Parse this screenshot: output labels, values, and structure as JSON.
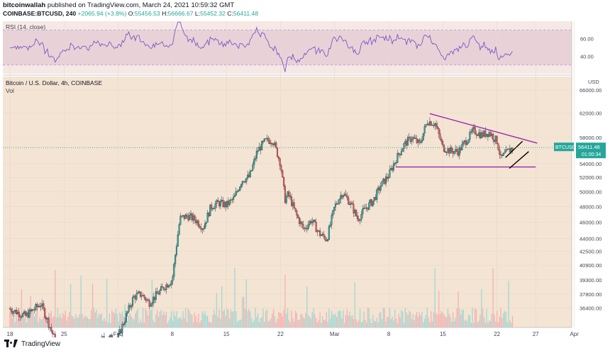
{
  "header": {
    "author": "bitcoinwallah",
    "published": "published on TradingView.com, March 24, 2021 10:59:32 GMT",
    "symbol": "COINBASE:BTCUSD, 240",
    "change": "+2065.94 (+3.8%)",
    "open_label": "O:",
    "open": "55456.53",
    "high_label": "H:",
    "high": "56666.67",
    "low_label": "L:",
    "low": "55452.32",
    "close_label": "C:",
    "close": "56411.48"
  },
  "footer": {
    "brand": "TradingView"
  },
  "colors": {
    "up": "#26a69a",
    "down": "#ef5350",
    "rsi_line": "#7e57c2",
    "rsi_band": "#e8d2d8",
    "trendline": "#9c27b0",
    "price_bg": "#f4e4d3",
    "volume_up": "#a6d8d3",
    "volume_down": "#f4b4b2"
  },
  "chart_data": {
    "type": "candlestick",
    "rsi_panel": {
      "label": "RSI (14, close)",
      "ticks": [
        "60.00",
        "40.00"
      ],
      "tick_values": [
        60,
        40
      ],
      "ylim": [
        20,
        80
      ],
      "band": [
        30,
        70
      ]
    },
    "price_panel": {
      "title": "Bitcoin / U.S. Dollar, 4h, COINBASE",
      "sublabel": "Vol",
      "currency": "USD",
      "ticks": [
        "66000.00",
        "62000.00",
        "58000.00",
        "54000.00",
        "52000.00",
        "50000.00",
        "48000.00",
        "46000.00",
        "44000.00",
        "42500.00",
        "40900.00",
        "39300.00",
        "37800.00",
        "36400.00"
      ],
      "tick_values": [
        66000,
        62000,
        58000,
        54000,
        52000,
        50000,
        48000,
        46000,
        44000,
        42500,
        40900,
        39300,
        37800,
        36400
      ],
      "scale": "log",
      "last_price_label": "BTCUSD",
      "last_price": "56411.48",
      "countdown": "01:00:34"
    },
    "x_axis": {
      "labels": [
        "18",
        "25",
        "Feb",
        "8",
        "15",
        "22",
        "Mar",
        "8",
        "15",
        "22",
        "27",
        "Apr"
      ],
      "label_days": [
        0,
        7,
        14,
        21,
        28,
        35,
        42,
        49,
        56,
        63,
        68,
        73
      ]
    },
    "candles_4h_approx": {
      "start_label": "Jan 18",
      "points": [
        [
          0,
          36300
        ],
        [
          2,
          35600
        ],
        [
          4,
          36800
        ],
        [
          6,
          33000
        ],
        [
          8,
          32800
        ],
        [
          10,
          31900
        ],
        [
          12,
          33400
        ],
        [
          14,
          33600
        ],
        [
          16,
          37500
        ],
        [
          17,
          37800
        ],
        [
          18,
          36900
        ],
        [
          20,
          38600
        ],
        [
          21,
          39300
        ],
        [
          22,
          46500
        ],
        [
          23,
          46800
        ],
        [
          24,
          46300
        ],
        [
          25,
          45300
        ],
        [
          26,
          48000
        ],
        [
          27,
          48500
        ],
        [
          28,
          48200
        ],
        [
          29,
          49100
        ],
        [
          30,
          51600
        ],
        [
          31,
          52100
        ],
        [
          32,
          55900
        ],
        [
          33,
          57400
        ],
        [
          34,
          57600
        ],
        [
          35,
          54000
        ],
        [
          35.3,
          51200
        ],
        [
          35.6,
          48900
        ],
        [
          36,
          49700
        ],
        [
          37,
          47000
        ],
        [
          38,
          45100
        ],
        [
          39,
          46300
        ],
        [
          40,
          44600
        ],
        [
          41,
          43900
        ],
        [
          42,
          48000
        ],
        [
          43,
          49900
        ],
        [
          44,
          48500
        ],
        [
          45,
          46400
        ],
        [
          46,
          47800
        ],
        [
          47,
          48800
        ],
        [
          48,
          50900
        ],
        [
          49,
          52300
        ],
        [
          50,
          54800
        ],
        [
          51,
          56900
        ],
        [
          52,
          58000
        ],
        [
          53,
          56900
        ],
        [
          54,
          60700
        ],
        [
          55,
          60200
        ],
        [
          56,
          56400
        ],
        [
          57,
          55900
        ],
        [
          58,
          55800
        ],
        [
          59,
          57500
        ],
        [
          60,
          59100
        ],
        [
          61,
          58400
        ],
        [
          62,
          58800
        ],
        [
          63,
          57400
        ],
        [
          63.5,
          54700
        ],
        [
          64,
          55400
        ],
        [
          64.5,
          55900
        ],
        [
          65,
          56400
        ]
      ]
    },
    "annotations": {
      "triangle_upper": [
        [
          54.3,
          61900
        ],
        [
          68.2,
          57100
        ]
      ],
      "triangle_lower": [
        [
          49.9,
          53500
        ],
        [
          68.0,
          53500
        ]
      ],
      "channel_upper": [
        [
          64.1,
          54900
        ],
        [
          66.3,
          57400
        ]
      ],
      "channel_lower": [
        [
          64.6,
          53300
        ],
        [
          67.1,
          55800
        ]
      ]
    }
  }
}
